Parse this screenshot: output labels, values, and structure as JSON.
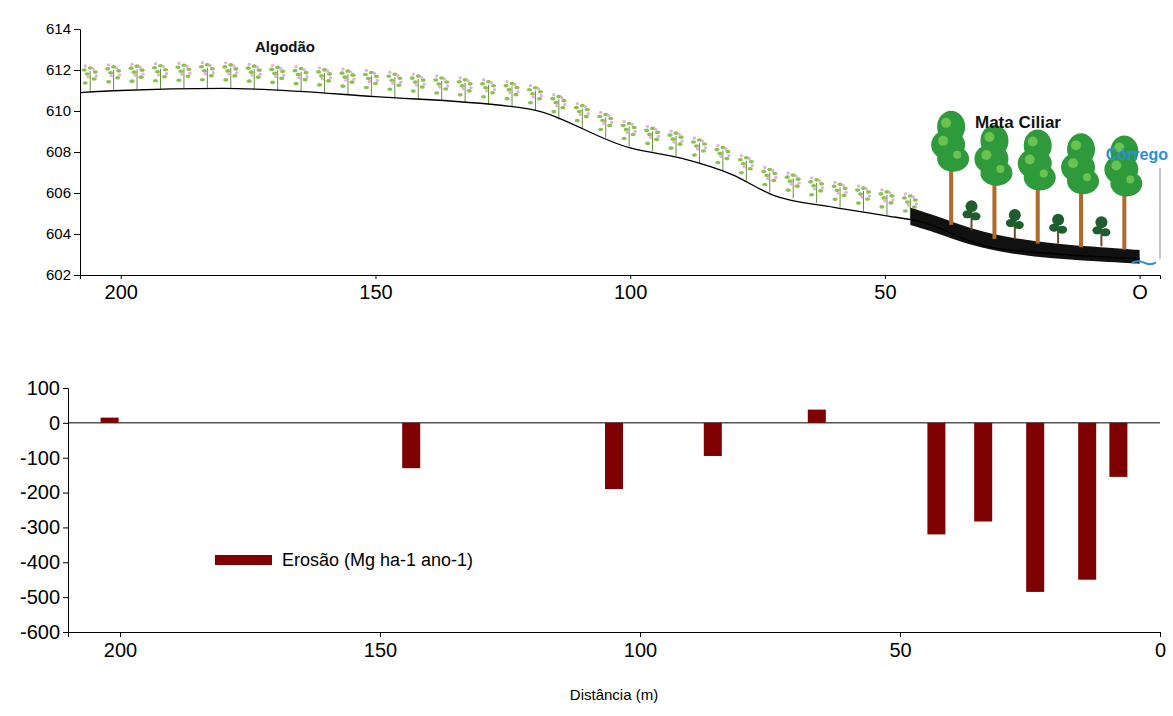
{
  "chart_data": [
    {
      "type": "line",
      "annotations": [
        "Algodão",
        "Mata Ciliar",
        "Córrego"
      ],
      "x": [
        208,
        200,
        180,
        150,
        120,
        100,
        90,
        80,
        72,
        60,
        50,
        43,
        30,
        15,
        0
      ],
      "values": [
        610.9,
        611.0,
        611.1,
        610.7,
        610.1,
        608.2,
        607.7,
        606.9,
        605.9,
        605.3,
        604.9,
        604.6,
        603.4,
        603.0,
        602.8
      ],
      "color": "#000000",
      "xlim": [
        208,
        -4
      ],
      "xticks": [
        200,
        150,
        100,
        50,
        {
          "value": 0,
          "label": "O"
        }
      ],
      "ylim": [
        602,
        614
      ],
      "yticks": [
        602,
        604,
        606,
        608,
        610,
        612,
        614
      ]
    },
    {
      "type": "bar",
      "xlabel": "Distância (m)",
      "x": [
        202,
        144,
        105,
        86,
        66,
        43,
        34,
        24,
        14,
        8
      ],
      "series": [
        {
          "name": "Erosão (Mg ha-1 ano-1)",
          "color": "#7f0000",
          "values": [
            15,
            -130,
            -190,
            -95,
            38,
            -320,
            -283,
            -485,
            -450,
            -155
          ]
        }
      ],
      "xlim": [
        210,
        0
      ],
      "xticks": [
        200,
        150,
        100,
        50,
        0
      ],
      "ylim": [
        -600,
        100
      ],
      "yticks": [
        -600,
        -500,
        -400,
        -300,
        -200,
        -100,
        0,
        100
      ],
      "legend": "lower-left"
    }
  ]
}
